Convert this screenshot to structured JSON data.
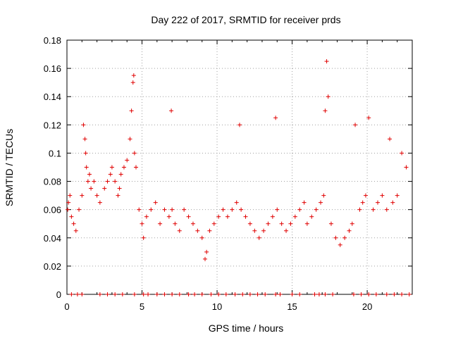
{
  "chart_data": {
    "type": "scatter",
    "title": "Day 222 of 2017, SRMTID for receiver prds",
    "xlabel": "GPS time / hours",
    "ylabel": "SRMTID / TECUs",
    "xlim": [
      0,
      23
    ],
    "ylim": [
      0,
      0.18
    ],
    "xticks": [
      0,
      5,
      10,
      15,
      20
    ],
    "xtick_labels": [
      "0",
      "5",
      "10",
      "15",
      "20"
    ],
    "yticks": [
      0,
      0.02,
      0.04,
      0.06,
      0.08,
      0.1,
      0.12,
      0.14,
      0.16,
      0.18
    ],
    "ytick_labels": [
      "0",
      "0.02",
      "0.04",
      "0.06",
      "0.08",
      "0.1",
      "0.12",
      "0.14",
      "0.16",
      "0.18"
    ],
    "grid": true,
    "marker": "+",
    "color": "#e00000",
    "series": [
      {
        "name": "SRMTID",
        "x": [
          0.05,
          0.1,
          0.2,
          0.3,
          0.45,
          0.6,
          0.8,
          1.0,
          1.1,
          1.2,
          1.25,
          1.3,
          1.4,
          1.5,
          1.6,
          1.8,
          2.0,
          2.2,
          2.5,
          2.7,
          2.9,
          3.0,
          3.2,
          3.4,
          3.5,
          3.6,
          3.8,
          4.0,
          4.2,
          4.3,
          4.4,
          4.45,
          4.5,
          4.6,
          4.8,
          5.0,
          5.1,
          5.3,
          5.6,
          5.9,
          6.2,
          6.5,
          6.8,
          6.95,
          7.0,
          7.2,
          7.5,
          7.8,
          8.1,
          8.4,
          8.7,
          9.0,
          9.2,
          9.3,
          9.5,
          9.8,
          10.1,
          10.4,
          10.7,
          11.0,
          11.3,
          11.5,
          11.6,
          11.9,
          12.2,
          12.5,
          12.8,
          13.1,
          13.4,
          13.7,
          13.9,
          14.0,
          14.3,
          14.6,
          14.9,
          15.2,
          15.5,
          15.8,
          16.0,
          16.3,
          16.6,
          16.9,
          17.1,
          17.2,
          17.3,
          17.4,
          17.6,
          17.9,
          18.2,
          18.5,
          18.8,
          19.0,
          19.2,
          19.5,
          19.7,
          19.9,
          20.1,
          20.4,
          20.7,
          21.0,
          21.3,
          21.5,
          21.7,
          22.0,
          22.3,
          22.6
        ],
        "y": [
          0.06,
          0.065,
          0.07,
          0.055,
          0.05,
          0.045,
          0.06,
          0.07,
          0.12,
          0.11,
          0.1,
          0.09,
          0.08,
          0.085,
          0.075,
          0.08,
          0.07,
          0.065,
          0.075,
          0.08,
          0.085,
          0.09,
          0.08,
          0.07,
          0.075,
          0.085,
          0.09,
          0.095,
          0.11,
          0.13,
          0.15,
          0.155,
          0.1,
          0.09,
          0.06,
          0.05,
          0.04,
          0.055,
          0.06,
          0.065,
          0.05,
          0.06,
          0.055,
          0.13,
          0.06,
          0.05,
          0.045,
          0.06,
          0.055,
          0.05,
          0.045,
          0.04,
          0.025,
          0.03,
          0.045,
          0.05,
          0.055,
          0.06,
          0.055,
          0.06,
          0.065,
          0.12,
          0.06,
          0.055,
          0.05,
          0.045,
          0.04,
          0.045,
          0.05,
          0.055,
          0.125,
          0.06,
          0.05,
          0.045,
          0.05,
          0.055,
          0.06,
          0.065,
          0.05,
          0.055,
          0.06,
          0.065,
          0.07,
          0.13,
          0.165,
          0.14,
          0.05,
          0.04,
          0.035,
          0.04,
          0.045,
          0.05,
          0.12,
          0.06,
          0.065,
          0.07,
          0.125,
          0.06,
          0.065,
          0.07,
          0.06,
          0.11,
          0.065,
          0.07,
          0.1,
          0.09
        ]
      }
    ],
    "zero_markers_x": [
      0.3,
      0.7,
      1.0,
      2.2,
      2.7,
      3.2,
      3.7,
      4.5,
      5.1,
      5.4,
      6.0,
      6.5,
      7.0,
      7.5,
      8.1,
      8.5,
      9.0,
      9.6,
      10.1,
      10.6,
      11.2,
      11.7,
      12.2,
      12.7,
      13.2,
      13.9,
      14.2,
      15.0,
      15.5,
      16.5,
      16.8,
      17.2,
      17.7,
      19.1,
      19.6,
      20.1,
      20.6,
      21.3,
      21.8,
      22.3,
      22.8
    ]
  }
}
